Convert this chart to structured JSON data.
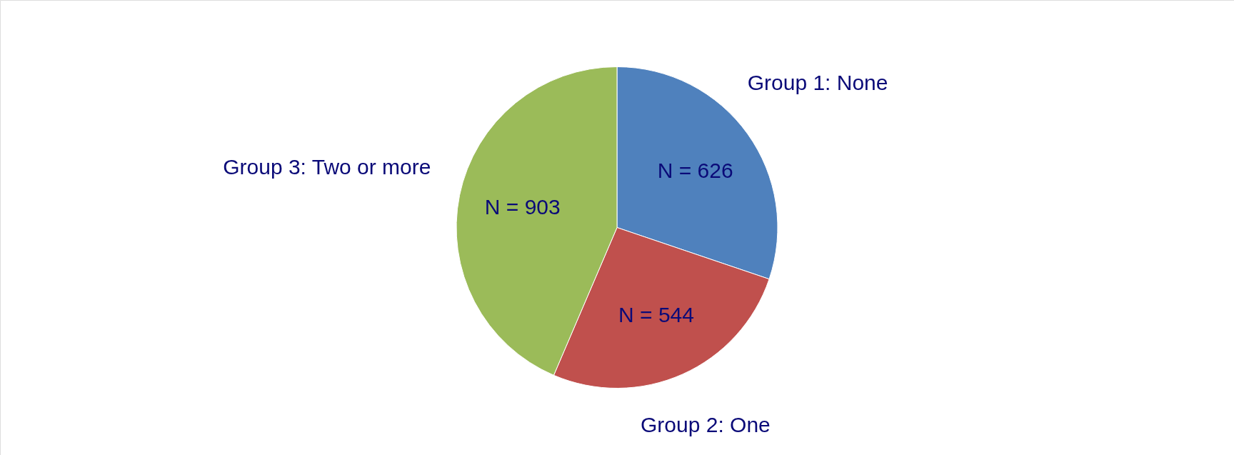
{
  "chart_data": {
    "type": "pie",
    "categories": [
      "Group 1: None",
      "Group 2: One",
      "Group 3: Two or more"
    ],
    "values": [
      626,
      544,
      903
    ],
    "colors": [
      "#4f81bd",
      "#c0504d",
      "#9bbb59"
    ],
    "value_labels": [
      "N = 626",
      "N = 544",
      "N = 903"
    ]
  }
}
